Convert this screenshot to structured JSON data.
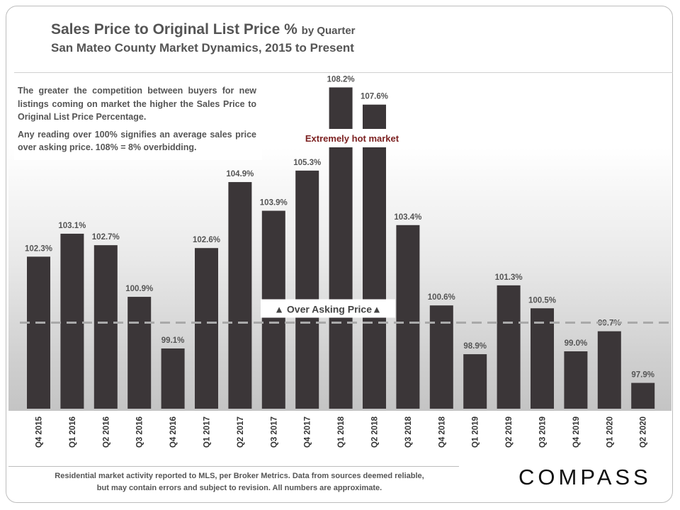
{
  "header": {
    "title_main": "Sales Price to Original List Price %",
    "title_suffix": "by Quarter",
    "subtitle": "San Mateo County Market Dynamics, 2015 to Present"
  },
  "note": {
    "para1": "The greater the competition between buyers for new listings coming on market the higher the Sales Price to Original List Price Percentage.",
    "para2": "Any reading over 100% signifies an average sales price over asking price. 108% = 8% overbidding."
  },
  "footer": {
    "disclaimer": "Residential market activity reported to MLS, per Broker Metrics. Data from sources deemed reliable, but may contain errors and subject to revision. All numbers are approximate.",
    "logo": "COMPASS"
  },
  "colors": {
    "bar": "#3b3638",
    "reference_line": "#a9a9a9",
    "annotation_text": "#7b1f1f"
  },
  "chart_data": {
    "type": "bar",
    "categories": [
      "Q4 2015",
      "Q1 2016",
      "Q2 2016",
      "Q3 2016",
      "Q4 2016",
      "Q1 2017",
      "Q2 2017",
      "Q3 2017",
      "Q4 2017",
      "Q1 2018",
      "Q2 2018",
      "Q3 2018",
      "Q4 2018",
      "Q1 2019",
      "Q2 2019",
      "Q3 2019",
      "Q4 2019",
      "Q1 2020",
      "Q2 2020"
    ],
    "values": [
      102.3,
      103.1,
      102.7,
      100.9,
      99.1,
      102.6,
      104.9,
      103.9,
      105.3,
      108.2,
      107.6,
      103.4,
      100.6,
      98.9,
      101.3,
      100.5,
      99.0,
      99.7,
      97.9
    ],
    "value_labels": [
      "102.3%",
      "103.1%",
      "102.7%",
      "100.9%",
      "99.1%",
      "102.6%",
      "104.9%",
      "103.9%",
      "105.3%",
      "108.2%",
      "107.6%",
      "103.4%",
      "100.6%",
      "98.9%",
      "101.3%",
      "100.5%",
      "99.0%",
      "99.7%",
      "97.9%"
    ],
    "reference_line": {
      "value": 100,
      "label": "▲ Over Asking Price▲",
      "style": "dashed"
    },
    "annotations": [
      {
        "text": "Extremely hot market"
      }
    ],
    "title": "Sales Price to Original List Price %",
    "xlabel": "",
    "ylabel": "",
    "ylim": [
      97,
      109
    ],
    "grid": false,
    "legend": "none"
  }
}
